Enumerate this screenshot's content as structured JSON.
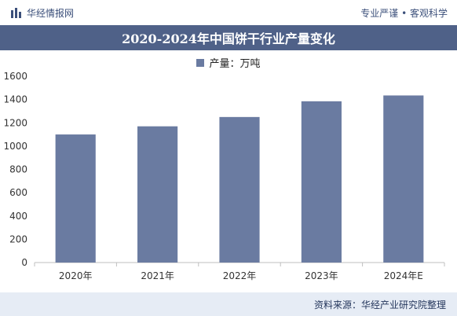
{
  "header": {
    "brand_name": "华经情报网",
    "slogan": "专业严谨 • 客观科学"
  },
  "chart_data": {
    "type": "bar",
    "title": "2020-2024年中国饼干行业产量变化",
    "categories": [
      "2020年",
      "2021年",
      "2022年",
      "2023年",
      "2024年E"
    ],
    "series": [
      {
        "name": "产量：万吨",
        "values": [
          1100,
          1170,
          1250,
          1385,
          1435
        ]
      }
    ],
    "ylim": [
      0,
      1600
    ],
    "yticks": [
      0,
      200,
      400,
      600,
      800,
      1000,
      1200,
      1400,
      1600
    ],
    "legend_position": "top-center",
    "grid": false,
    "bar_color": "#6a7ba1"
  },
  "footer": {
    "source": "资料来源：华经产业研究院整理"
  }
}
